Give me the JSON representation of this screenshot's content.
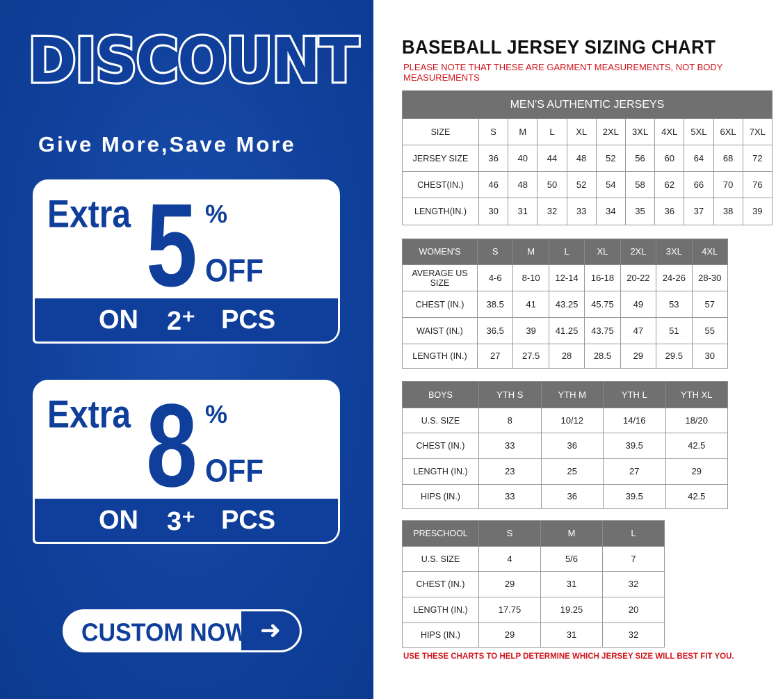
{
  "promo": {
    "headline": "DISCOUNT",
    "tagline": "Give More,Save More",
    "offers": [
      {
        "extra": "Extra",
        "amount": "5",
        "percent": "%",
        "off": "OFF",
        "on": "ON",
        "qty": "2⁺",
        "pcs": "PCS"
      },
      {
        "extra": "Extra",
        "amount": "8",
        "percent": "%",
        "off": "OFF",
        "on": "ON",
        "qty": "3⁺",
        "pcs": "PCS"
      }
    ],
    "cta_label": "CUSTOM NOW",
    "cta_icon": "arrow-right-icon",
    "brand_color": "#0f3f9a"
  },
  "chart": {
    "title": "BASEBALL JERSEY SIZING CHART",
    "note": "PLEASE NOTE THAT THESE ARE GARMENT MEASUREMENTS, NOT BODY MEASUREMENTS",
    "footer": "USE THESE CHARTS TO HELP DETERMINE WHICH JERSEY SIZE WILL BEST FIT YOU.",
    "note_color": "#d0161c",
    "header_color": "#707070",
    "tables": [
      {
        "caption": "MEN'S AUTHENTIC JERSEYS",
        "columns": [
          "SIZE",
          "S",
          "M",
          "L",
          "XL",
          "2XL",
          "3XL",
          "4XL",
          "5XL",
          "6XL",
          "7XL"
        ],
        "rows": [
          [
            "JERSEY SIZE",
            "36",
            "40",
            "44",
            "48",
            "52",
            "56",
            "60",
            "64",
            "68",
            "72"
          ],
          [
            "CHEST(IN.)",
            "46",
            "48",
            "50",
            "52",
            "54",
            "58",
            "62",
            "66",
            "70",
            "76"
          ],
          [
            "LENGTH(IN.)",
            "30",
            "31",
            "32",
            "33",
            "34",
            "35",
            "36",
            "37",
            "38",
            "39"
          ]
        ]
      },
      {
        "columns": [
          "WOMEN'S",
          "S",
          "M",
          "L",
          "XL",
          "2XL",
          "3XL",
          "4XL"
        ],
        "rows": [
          [
            "AVERAGE US SIZE",
            "4-6",
            "8-10",
            "12-14",
            "16-18",
            "20-22",
            "24-26",
            "28-30"
          ],
          [
            "CHEST (IN.)",
            "38.5",
            "41",
            "43.25",
            "45.75",
            "49",
            "53",
            "57"
          ],
          [
            "WAIST (IN.)",
            "36.5",
            "39",
            "41.25",
            "43.75",
            "47",
            "51",
            "55"
          ],
          [
            "LENGTH (IN.)",
            "27",
            "27.5",
            "28",
            "28.5",
            "29",
            "29.5",
            "30"
          ]
        ]
      },
      {
        "columns": [
          "BOYS",
          "YTH S",
          "YTH M",
          "YTH L",
          "YTH XL"
        ],
        "rows": [
          [
            "U.S. SIZE",
            "8",
            "10/12",
            "14/16",
            "18/20"
          ],
          [
            "CHEST (IN.)",
            "33",
            "36",
            "39.5",
            "42.5"
          ],
          [
            "LENGTH (IN.)",
            "23",
            "25",
            "27",
            "29"
          ],
          [
            "HIPS (IN.)",
            "33",
            "36",
            "39.5",
            "42.5"
          ]
        ]
      },
      {
        "columns": [
          "PRESCHOOL",
          "S",
          "M",
          "L"
        ],
        "rows": [
          [
            "U.S. SIZE",
            "4",
            "5/6",
            "7"
          ],
          [
            "CHEST (IN.)",
            "29",
            "31",
            "32"
          ],
          [
            "LENGTH (IN.)",
            "17.75",
            "19.25",
            "20"
          ],
          [
            "HIPS (IN.)",
            "29",
            "31",
            "32"
          ]
        ]
      }
    ]
  }
}
